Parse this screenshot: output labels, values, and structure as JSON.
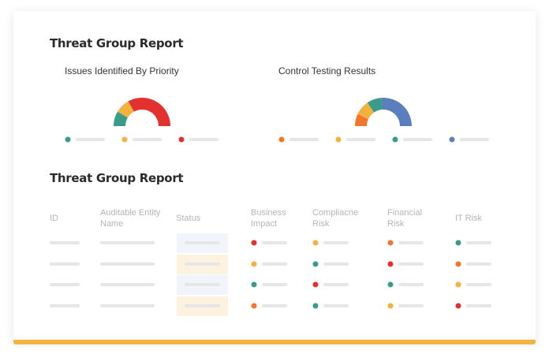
{
  "header": {
    "title": "Threat Group Report"
  },
  "gauges": [
    {
      "title": "Issues Identified By Priority",
      "segments": [
        {
          "color": "#3a9b8a",
          "value": 17
        },
        {
          "color": "#f3b23e",
          "value": 17
        },
        {
          "color": "#e2312e",
          "value": 66
        }
      ]
    },
    {
      "title": "Control Testing Results",
      "segments": [
        {
          "color": "#f1772d",
          "value": 14
        },
        {
          "color": "#f3b23e",
          "value": 17
        },
        {
          "color": "#3a9b8a",
          "value": 17
        },
        {
          "color": "#5b7fbd",
          "value": 52
        }
      ]
    }
  ],
  "table": {
    "title": "Threat Group Report",
    "columns": [
      "ID",
      "Auditable Entity Name",
      "Status",
      "Business Impact",
      "Compliacne Risk",
      "Financial Risk",
      "IT Risk"
    ],
    "status_colors": [
      "#f1f4fa",
      "#fdf1e0",
      "#f1f4fa",
      "#fdf1e0"
    ],
    "rows": [
      [
        "#e2312e",
        "#f3b23e",
        "#f1772d",
        "#3a9b8a"
      ],
      [
        "#f3b23e",
        "#3a9b8a",
        "#e2312e",
        "#f1772d"
      ],
      [
        "#3a9b8a",
        "#e2312e",
        "#3a9b8a",
        "#f3b23e"
      ],
      [
        "#f1772d",
        "#3a9b8a",
        "#f3b23e",
        "#e2312e"
      ]
    ]
  }
}
